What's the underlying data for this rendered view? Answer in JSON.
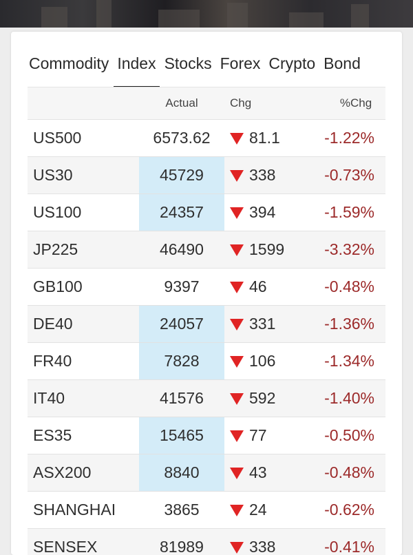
{
  "tabs": [
    {
      "label": "Commodity",
      "active": false
    },
    {
      "label": "Index",
      "active": true
    },
    {
      "label": "Stocks",
      "active": false
    },
    {
      "label": "Forex",
      "active": false
    },
    {
      "label": "Crypto",
      "active": false
    },
    {
      "label": "Bond",
      "active": false
    }
  ],
  "table": {
    "headers": {
      "actual": "Actual",
      "chg": "Chg",
      "pct": "%Chg"
    },
    "rows": [
      {
        "name": "US500",
        "actual": "6573.62",
        "chg": "81.1",
        "pct": "-1.22%",
        "highlight": false,
        "direction": "down"
      },
      {
        "name": "US30",
        "actual": "45729",
        "chg": "338",
        "pct": "-0.73%",
        "highlight": true,
        "direction": "down"
      },
      {
        "name": "US100",
        "actual": "24357",
        "chg": "394",
        "pct": "-1.59%",
        "highlight": true,
        "direction": "down"
      },
      {
        "name": "JP225",
        "actual": "46490",
        "chg": "1599",
        "pct": "-3.32%",
        "highlight": false,
        "direction": "down"
      },
      {
        "name": "GB100",
        "actual": "9397",
        "chg": "46",
        "pct": "-0.48%",
        "highlight": false,
        "direction": "down"
      },
      {
        "name": "DE40",
        "actual": "24057",
        "chg": "331",
        "pct": "-1.36%",
        "highlight": true,
        "direction": "down"
      },
      {
        "name": "FR40",
        "actual": "7828",
        "chg": "106",
        "pct": "-1.34%",
        "highlight": true,
        "direction": "down"
      },
      {
        "name": "IT40",
        "actual": "41576",
        "chg": "592",
        "pct": "-1.40%",
        "highlight": false,
        "direction": "down"
      },
      {
        "name": "ES35",
        "actual": "15465",
        "chg": "77",
        "pct": "-0.50%",
        "highlight": true,
        "direction": "down"
      },
      {
        "name": "ASX200",
        "actual": "8840",
        "chg": "43",
        "pct": "-0.48%",
        "highlight": true,
        "direction": "down"
      },
      {
        "name": "SHANGHAI",
        "actual": "3865",
        "chg": "24",
        "pct": "-0.62%",
        "highlight": false,
        "direction": "down"
      },
      {
        "name": "SENSEX",
        "actual": "81989",
        "chg": "338",
        "pct": "-0.41%",
        "highlight": false,
        "direction": "down"
      }
    ]
  },
  "colors": {
    "down_arrow": "#e02424",
    "negative_pct": "#9c2a2a",
    "highlight_cell": "#d4ecf8"
  },
  "icons": {
    "down": "down-triangle-icon"
  }
}
